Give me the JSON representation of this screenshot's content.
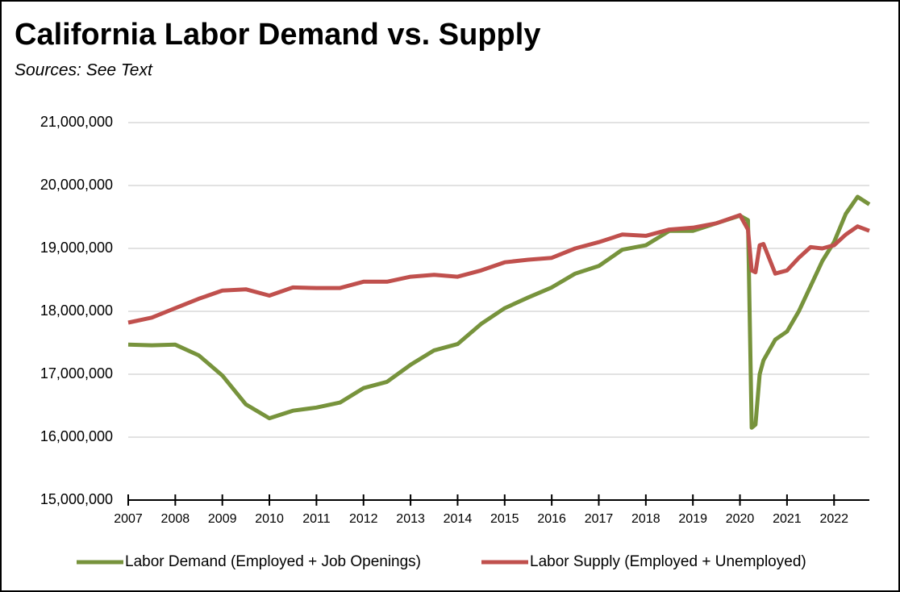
{
  "chart_data": {
    "type": "line",
    "title": "California Labor Demand vs. Supply",
    "subtitle": "Sources:  See Text",
    "x": [
      2007,
      2007.5,
      2008,
      2008.5,
      2009,
      2009.5,
      2010,
      2010.5,
      2011,
      2011.5,
      2012,
      2012.5,
      2013,
      2013.5,
      2014,
      2014.5,
      2015,
      2015.5,
      2016,
      2016.5,
      2017,
      2017.5,
      2018,
      2018.5,
      2019,
      2019.5,
      2020,
      2020.17,
      2020.25,
      2020.33,
      2020.42,
      2020.5,
      2020.75,
      2021,
      2021.25,
      2021.5,
      2021.75,
      2022,
      2022.25,
      2022.5,
      2022.75
    ],
    "series": [
      {
        "name": "Labor Demand (Employed + Job Openings)",
        "color": "#77933c",
        "values": [
          17470000,
          17460000,
          17470000,
          17300000,
          16980000,
          16520000,
          16300000,
          16420000,
          16470000,
          16550000,
          16780000,
          16880000,
          17150000,
          17380000,
          17480000,
          17800000,
          18050000,
          18220000,
          18380000,
          18600000,
          18720000,
          18980000,
          19050000,
          19280000,
          19280000,
          19400000,
          19520000,
          19450000,
          16150000,
          16200000,
          17000000,
          17220000,
          17550000,
          17680000,
          18000000,
          18400000,
          18800000,
          19100000,
          19550000,
          19820000,
          19700000
        ]
      },
      {
        "name": "Labor Supply (Employed + Unemployed)",
        "color": "#c0504d",
        "values": [
          17820000,
          17900000,
          18050000,
          18200000,
          18330000,
          18350000,
          18250000,
          18380000,
          18370000,
          18370000,
          18470000,
          18470000,
          18550000,
          18580000,
          18550000,
          18650000,
          18780000,
          18820000,
          18850000,
          19000000,
          19100000,
          19220000,
          19200000,
          19300000,
          19330000,
          19400000,
          19530000,
          19300000,
          18650000,
          18620000,
          19050000,
          19070000,
          18600000,
          18650000,
          18850000,
          19020000,
          19000000,
          19050000,
          19220000,
          19350000,
          19280000
        ]
      }
    ],
    "xlim": [
      2007,
      2022.75
    ],
    "xticks": [
      2007,
      2008,
      2009,
      2010,
      2011,
      2012,
      2013,
      2014,
      2015,
      2016,
      2017,
      2018,
      2019,
      2020,
      2021,
      2022
    ],
    "ylim": [
      15000000,
      21000000
    ],
    "yticks": [
      {
        "value": 15000000,
        "label": "15,000,000"
      },
      {
        "value": 16000000,
        "label": "16,000,000"
      },
      {
        "value": 17000000,
        "label": "17,000,000"
      },
      {
        "value": 18000000,
        "label": "18,000,000"
      },
      {
        "value": 19000000,
        "label": "19,000,000"
      },
      {
        "value": 20000000,
        "label": "20,000,000"
      },
      {
        "value": 21000000,
        "label": "21,000,000"
      }
    ],
    "grid": true,
    "legend": "bottom"
  }
}
